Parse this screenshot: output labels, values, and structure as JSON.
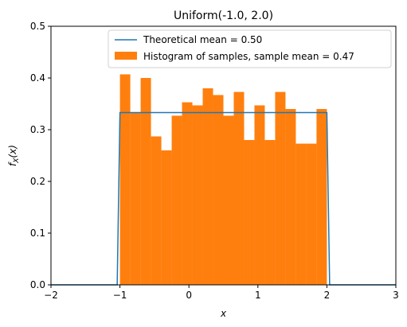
{
  "chart_data": {
    "type": "bar",
    "title": "Uniform(-1.0, 2.0)",
    "xlabel": "x",
    "ylabel": "f_X(x)",
    "xlim": [
      -2,
      3
    ],
    "ylim": [
      0,
      0.5
    ],
    "xticks": [
      "-2",
      "-1",
      "0",
      "1",
      "2",
      "3"
    ],
    "yticks": [
      "0.0",
      "0.1",
      "0.2",
      "0.3",
      "0.4",
      "0.5"
    ],
    "grid": false,
    "legend_position": "top-right",
    "colors": {
      "line": "#1f77b4",
      "hist": "#ff7f0e"
    },
    "series": [
      {
        "name": "Theoretical mean = 0.50",
        "kind": "line",
        "x": [
          -2.0,
          -1.04,
          -1.0,
          2.0,
          2.04,
          3.0
        ],
        "y": [
          0,
          0,
          0.333,
          0.333,
          0,
          0
        ]
      },
      {
        "name": "Histogram of samples, sample mean = 0.47",
        "kind": "histogram",
        "bin_edges": [
          -1.0,
          -0.85,
          -0.7,
          -0.55,
          -0.4,
          -0.25,
          -0.1,
          0.05,
          0.2,
          0.35,
          0.5,
          0.65,
          0.8,
          0.95,
          1.1,
          1.25,
          1.4,
          1.55,
          1.7,
          1.85,
          2.0
        ],
        "values": [
          0.407,
          0.333,
          0.4,
          0.287,
          0.26,
          0.327,
          0.353,
          0.347,
          0.38,
          0.367,
          0.327,
          0.373,
          0.28,
          0.347,
          0.28,
          0.373,
          0.34,
          0.273,
          0.273,
          0.34
        ]
      }
    ]
  }
}
